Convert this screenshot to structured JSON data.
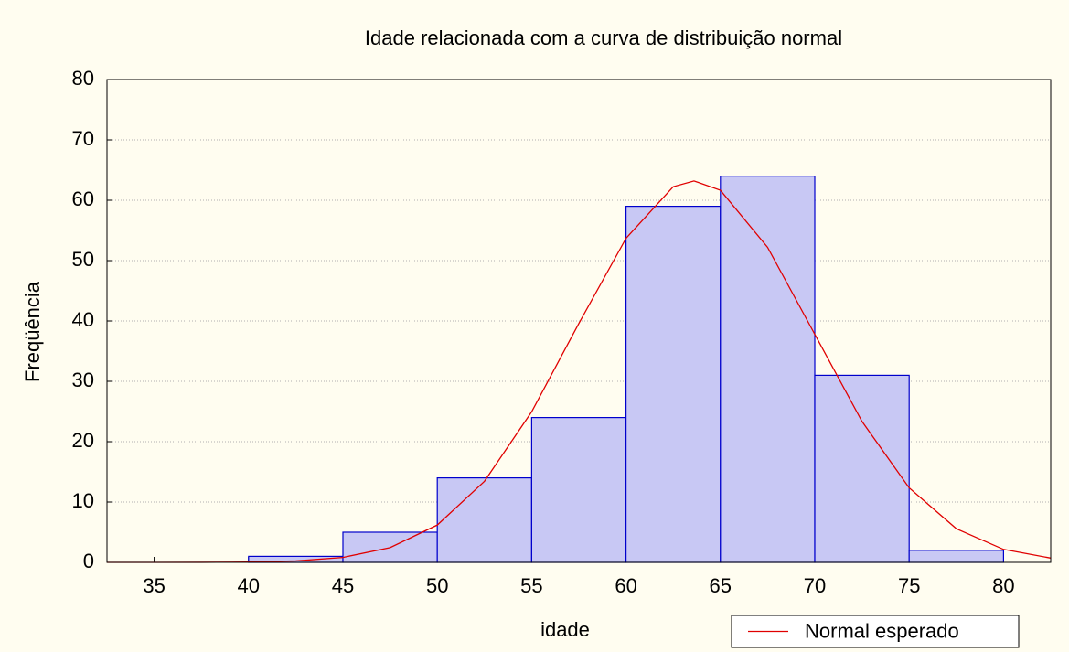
{
  "chart_data": {
    "type": "histogram",
    "title": "Idade relacionada com a curva de distribuição normal",
    "xlabel": "idade",
    "ylabel": "Freqüência",
    "bins": [
      35,
      40,
      45,
      50,
      55,
      60,
      65,
      70,
      75,
      80
    ],
    "values": [
      0,
      1,
      5,
      14,
      24,
      59,
      64,
      31,
      2
    ],
    "color": "#c8c8f4",
    "edgecolor": "#0000cc",
    "curve": {
      "name": "Normal esperado",
      "color": "#e00000",
      "x": [
        32.5,
        35,
        37.5,
        40,
        42.5,
        45,
        47.5,
        50,
        52.5,
        55,
        57.5,
        60,
        62.5,
        63.6,
        65,
        67.5,
        70,
        72.5,
        75,
        77.5,
        80,
        82.5
      ],
      "values": [
        0.0,
        0.002,
        0.012,
        0.058,
        0.235,
        0.82,
        2.44,
        6.19,
        13.44,
        24.96,
        39.6,
        53.7,
        62.25,
        63.2,
        61.66,
        52.2,
        37.8,
        23.37,
        12.35,
        5.58,
        2.15,
        0.71
      ]
    },
    "xlim": [
      32.5,
      82.5
    ],
    "xticks": [
      35,
      40,
      45,
      50,
      55,
      60,
      65,
      70,
      75,
      80
    ],
    "ylim": [
      0,
      80
    ],
    "yticks": [
      0,
      10,
      20,
      30,
      40,
      50,
      60,
      70,
      80
    ],
    "grid": true,
    "legend": "lower right"
  }
}
